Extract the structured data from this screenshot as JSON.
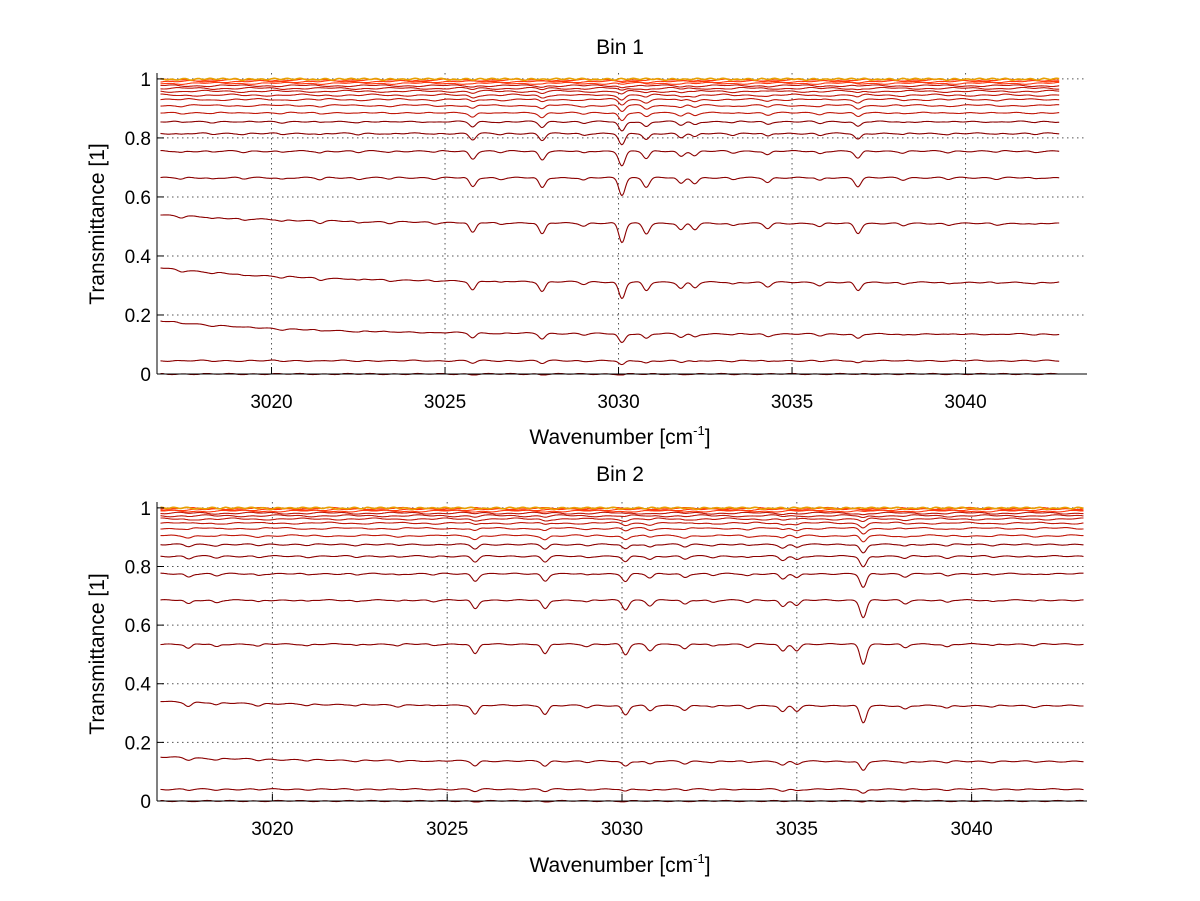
{
  "colors": {
    "background": "#ffffff",
    "axis": "#000000",
    "grid": "#555555",
    "dark_trace": "#8b0000",
    "mid_trace": "#c0180a",
    "light_trace": "#ff3a10",
    "top_trace": "#e8a000"
  },
  "chart_data": [
    {
      "type": "line",
      "title": "Bin 1",
      "xlabel": "Wavenumber [cm",
      "xlabel_sup": "-1",
      "xlabel_close": "]",
      "ylabel": "Transmittance [1]",
      "xlim": [
        3016.7,
        3043.5
      ],
      "ylim": [
        0,
        1.02
      ],
      "xticks": [
        3020,
        3025,
        3030,
        3035,
        3040
      ],
      "yticks": [
        0,
        0.2,
        0.4,
        0.6,
        0.8,
        1
      ],
      "ytick_labels": [
        "0",
        "0.2",
        "0.4",
        "0.6",
        "0.8",
        "1"
      ],
      "grid": true,
      "legend": "none",
      "x_range": [
        3016.8,
        3042.7
      ],
      "absorption_lines": [
        {
          "x": 3017.4,
          "depth": 0.15
        },
        {
          "x": 3018.3,
          "depth": 0.12
        },
        {
          "x": 3019.2,
          "depth": 0.12
        },
        {
          "x": 3020.3,
          "depth": 0.15
        },
        {
          "x": 3021.4,
          "depth": 0.2
        },
        {
          "x": 3022.5,
          "depth": 0.15
        },
        {
          "x": 3023.4,
          "depth": 0.12
        },
        {
          "x": 3024.7,
          "depth": 0.12
        },
        {
          "x": 3025.8,
          "depth": 0.9
        },
        {
          "x": 3026.6,
          "depth": 0.15
        },
        {
          "x": 3027.8,
          "depth": 1.0
        },
        {
          "x": 3029.0,
          "depth": 0.25
        },
        {
          "x": 3030.1,
          "depth": 1.7
        },
        {
          "x": 3030.8,
          "depth": 0.9
        },
        {
          "x": 3031.8,
          "depth": 0.6
        },
        {
          "x": 3032.2,
          "depth": 0.55
        },
        {
          "x": 3033.3,
          "depth": 0.2
        },
        {
          "x": 3034.3,
          "depth": 0.45
        },
        {
          "x": 3035.8,
          "depth": 0.3
        },
        {
          "x": 3036.9,
          "depth": 0.85
        },
        {
          "x": 3038.2,
          "depth": 0.2
        },
        {
          "x": 3039.5,
          "depth": 0.15
        },
        {
          "x": 3040.9,
          "depth": 0.12
        },
        {
          "x": 3042.0,
          "depth": 0.12
        }
      ],
      "series": [
        {
          "baseline": 0.0
        },
        {
          "baseline": 0.045
        },
        {
          "baseline": 0.135,
          "start": 0.18
        },
        {
          "baseline": 0.31,
          "start": 0.36
        },
        {
          "baseline": 0.51,
          "start": 0.54
        },
        {
          "baseline": 0.665
        },
        {
          "baseline": 0.755
        },
        {
          "baseline": 0.815
        },
        {
          "baseline": 0.855
        },
        {
          "baseline": 0.885
        },
        {
          "baseline": 0.91
        },
        {
          "baseline": 0.93
        },
        {
          "baseline": 0.945
        },
        {
          "baseline": 0.958
        },
        {
          "baseline": 0.968
        },
        {
          "baseline": 0.977
        },
        {
          "baseline": 0.985
        },
        {
          "baseline": 0.991
        },
        {
          "baseline": 0.996
        },
        {
          "baseline": 1.0
        }
      ]
    },
    {
      "type": "line",
      "title": "Bin 2",
      "xlabel": "Wavenumber [cm",
      "xlabel_sup": "-1",
      "xlabel_close": "]",
      "ylabel": "Transmittance [1]",
      "xlim": [
        3016.7,
        3043.3
      ],
      "ylim": [
        0,
        1.02
      ],
      "xticks": [
        3020,
        3025,
        3030,
        3035,
        3040
      ],
      "yticks": [
        0,
        0.2,
        0.4,
        0.6,
        0.8,
        1
      ],
      "ytick_labels": [
        "0",
        "0.2",
        "0.4",
        "0.6",
        "0.8",
        "1"
      ],
      "grid": true,
      "legend": "none",
      "x_range": [
        3016.8,
        3043.2
      ],
      "absorption_lines": [
        {
          "x": 3017.6,
          "depth": 0.4
        },
        {
          "x": 3018.4,
          "depth": 0.25
        },
        {
          "x": 3019.6,
          "depth": 0.2
        },
        {
          "x": 3021.0,
          "depth": 0.15
        },
        {
          "x": 3022.4,
          "depth": 0.15
        },
        {
          "x": 3023.6,
          "depth": 0.15
        },
        {
          "x": 3024.6,
          "depth": 0.12
        },
        {
          "x": 3025.8,
          "depth": 0.9
        },
        {
          "x": 3027.8,
          "depth": 0.9
        },
        {
          "x": 3029.0,
          "depth": 0.2
        },
        {
          "x": 3030.1,
          "depth": 0.95
        },
        {
          "x": 3030.8,
          "depth": 0.55
        },
        {
          "x": 3031.8,
          "depth": 0.45
        },
        {
          "x": 3032.6,
          "depth": 0.2
        },
        {
          "x": 3033.6,
          "depth": 0.25
        },
        {
          "x": 3034.6,
          "depth": 0.65
        },
        {
          "x": 3035.0,
          "depth": 0.55
        },
        {
          "x": 3036.9,
          "depth": 1.75
        },
        {
          "x": 3038.1,
          "depth": 0.35
        },
        {
          "x": 3039.3,
          "depth": 0.25
        },
        {
          "x": 3040.6,
          "depth": 0.15
        },
        {
          "x": 3041.8,
          "depth": 0.12
        }
      ],
      "series": [
        {
          "baseline": 0.0
        },
        {
          "baseline": 0.04
        },
        {
          "baseline": 0.135,
          "start": 0.15
        },
        {
          "baseline": 0.325,
          "start": 0.34
        },
        {
          "baseline": 0.535
        },
        {
          "baseline": 0.685
        },
        {
          "baseline": 0.775
        },
        {
          "baseline": 0.835
        },
        {
          "baseline": 0.875
        },
        {
          "baseline": 0.905
        },
        {
          "baseline": 0.93
        },
        {
          "baseline": 0.948
        },
        {
          "baseline": 0.962
        },
        {
          "baseline": 0.973
        },
        {
          "baseline": 0.982
        },
        {
          "baseline": 0.989
        },
        {
          "baseline": 0.994
        },
        {
          "baseline": 0.998
        },
        {
          "baseline": 1.0
        }
      ]
    }
  ]
}
